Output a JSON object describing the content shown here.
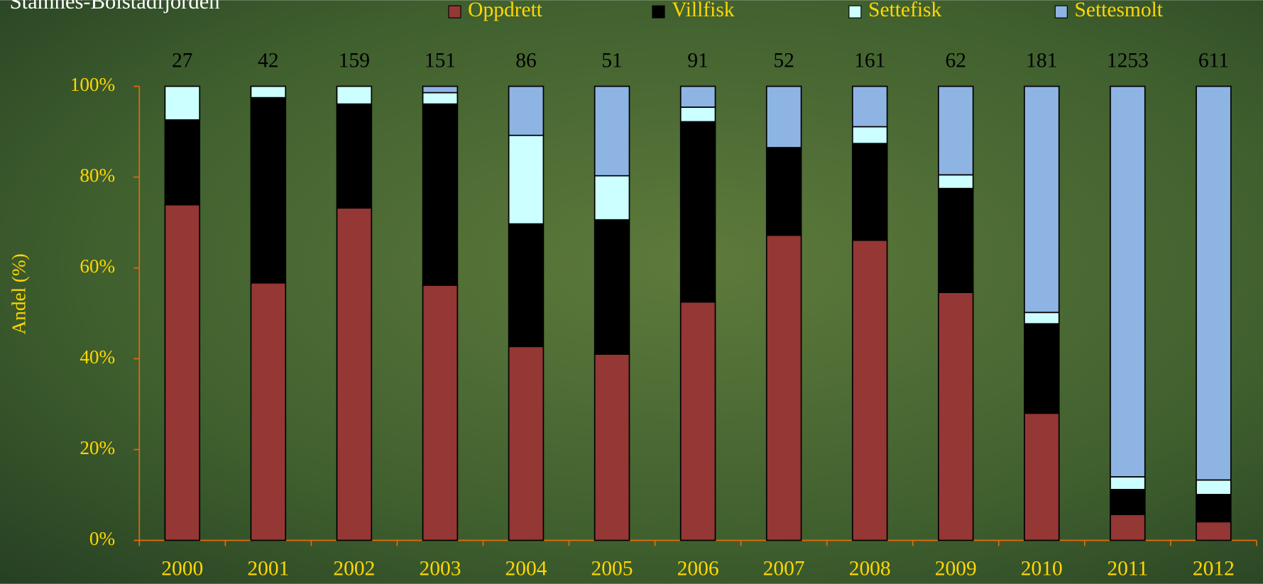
{
  "chart_data": {
    "type": "stacked_bar_100",
    "title": "Stamnes-Bolstadfjorden",
    "y_label": "Andel (%)",
    "categories": [
      "2000",
      "2001",
      "2002",
      "2003",
      "2004",
      "2005",
      "2006",
      "2007",
      "2008",
      "2009",
      "2010",
      "2011",
      "2012"
    ],
    "totals": [
      "27",
      "42",
      "159",
      "151",
      "86",
      "51",
      "91",
      "52",
      "161",
      "62",
      "181",
      "1253",
      "611"
    ],
    "series": [
      {
        "name": "Oppdrett",
        "color": "#953735",
        "values": [
          73.9,
          56.7,
          73.2,
          56.2,
          42.7,
          41.0,
          52.5,
          67.2,
          66.1,
          54.6,
          28.0,
          5.7,
          4.1
        ]
      },
      {
        "name": "Villfisk",
        "color": "#000000",
        "values": [
          18.7,
          40.8,
          22.9,
          39.9,
          27.0,
          29.6,
          39.7,
          19.3,
          21.3,
          22.9,
          19.7,
          5.5,
          6.0
        ]
      },
      {
        "name": "Settefisk",
        "color": "#ccffff",
        "values": [
          7.4,
          2.5,
          3.9,
          2.5,
          19.5,
          9.7,
          3.2,
          0,
          3.7,
          3.0,
          2.5,
          2.8,
          3.2
        ]
      },
      {
        "name": "Settesmolt",
        "color": "#8eb4e3",
        "values": [
          0,
          0,
          0,
          1.4,
          10.8,
          19.7,
          4.6,
          13.5,
          8.9,
          19.5,
          49.8,
          86.0,
          86.7
        ]
      }
    ],
    "ylim": [
      0,
      100
    ],
    "yticks": [
      {
        "value": 0,
        "label": "0%"
      },
      {
        "value": 20,
        "label": "20%"
      },
      {
        "value": 40,
        "label": "40%"
      },
      {
        "value": 60,
        "label": "60%"
      },
      {
        "value": 80,
        "label": "80%"
      },
      {
        "value": 100,
        "label": "100%"
      }
    ],
    "legend": "top"
  }
}
